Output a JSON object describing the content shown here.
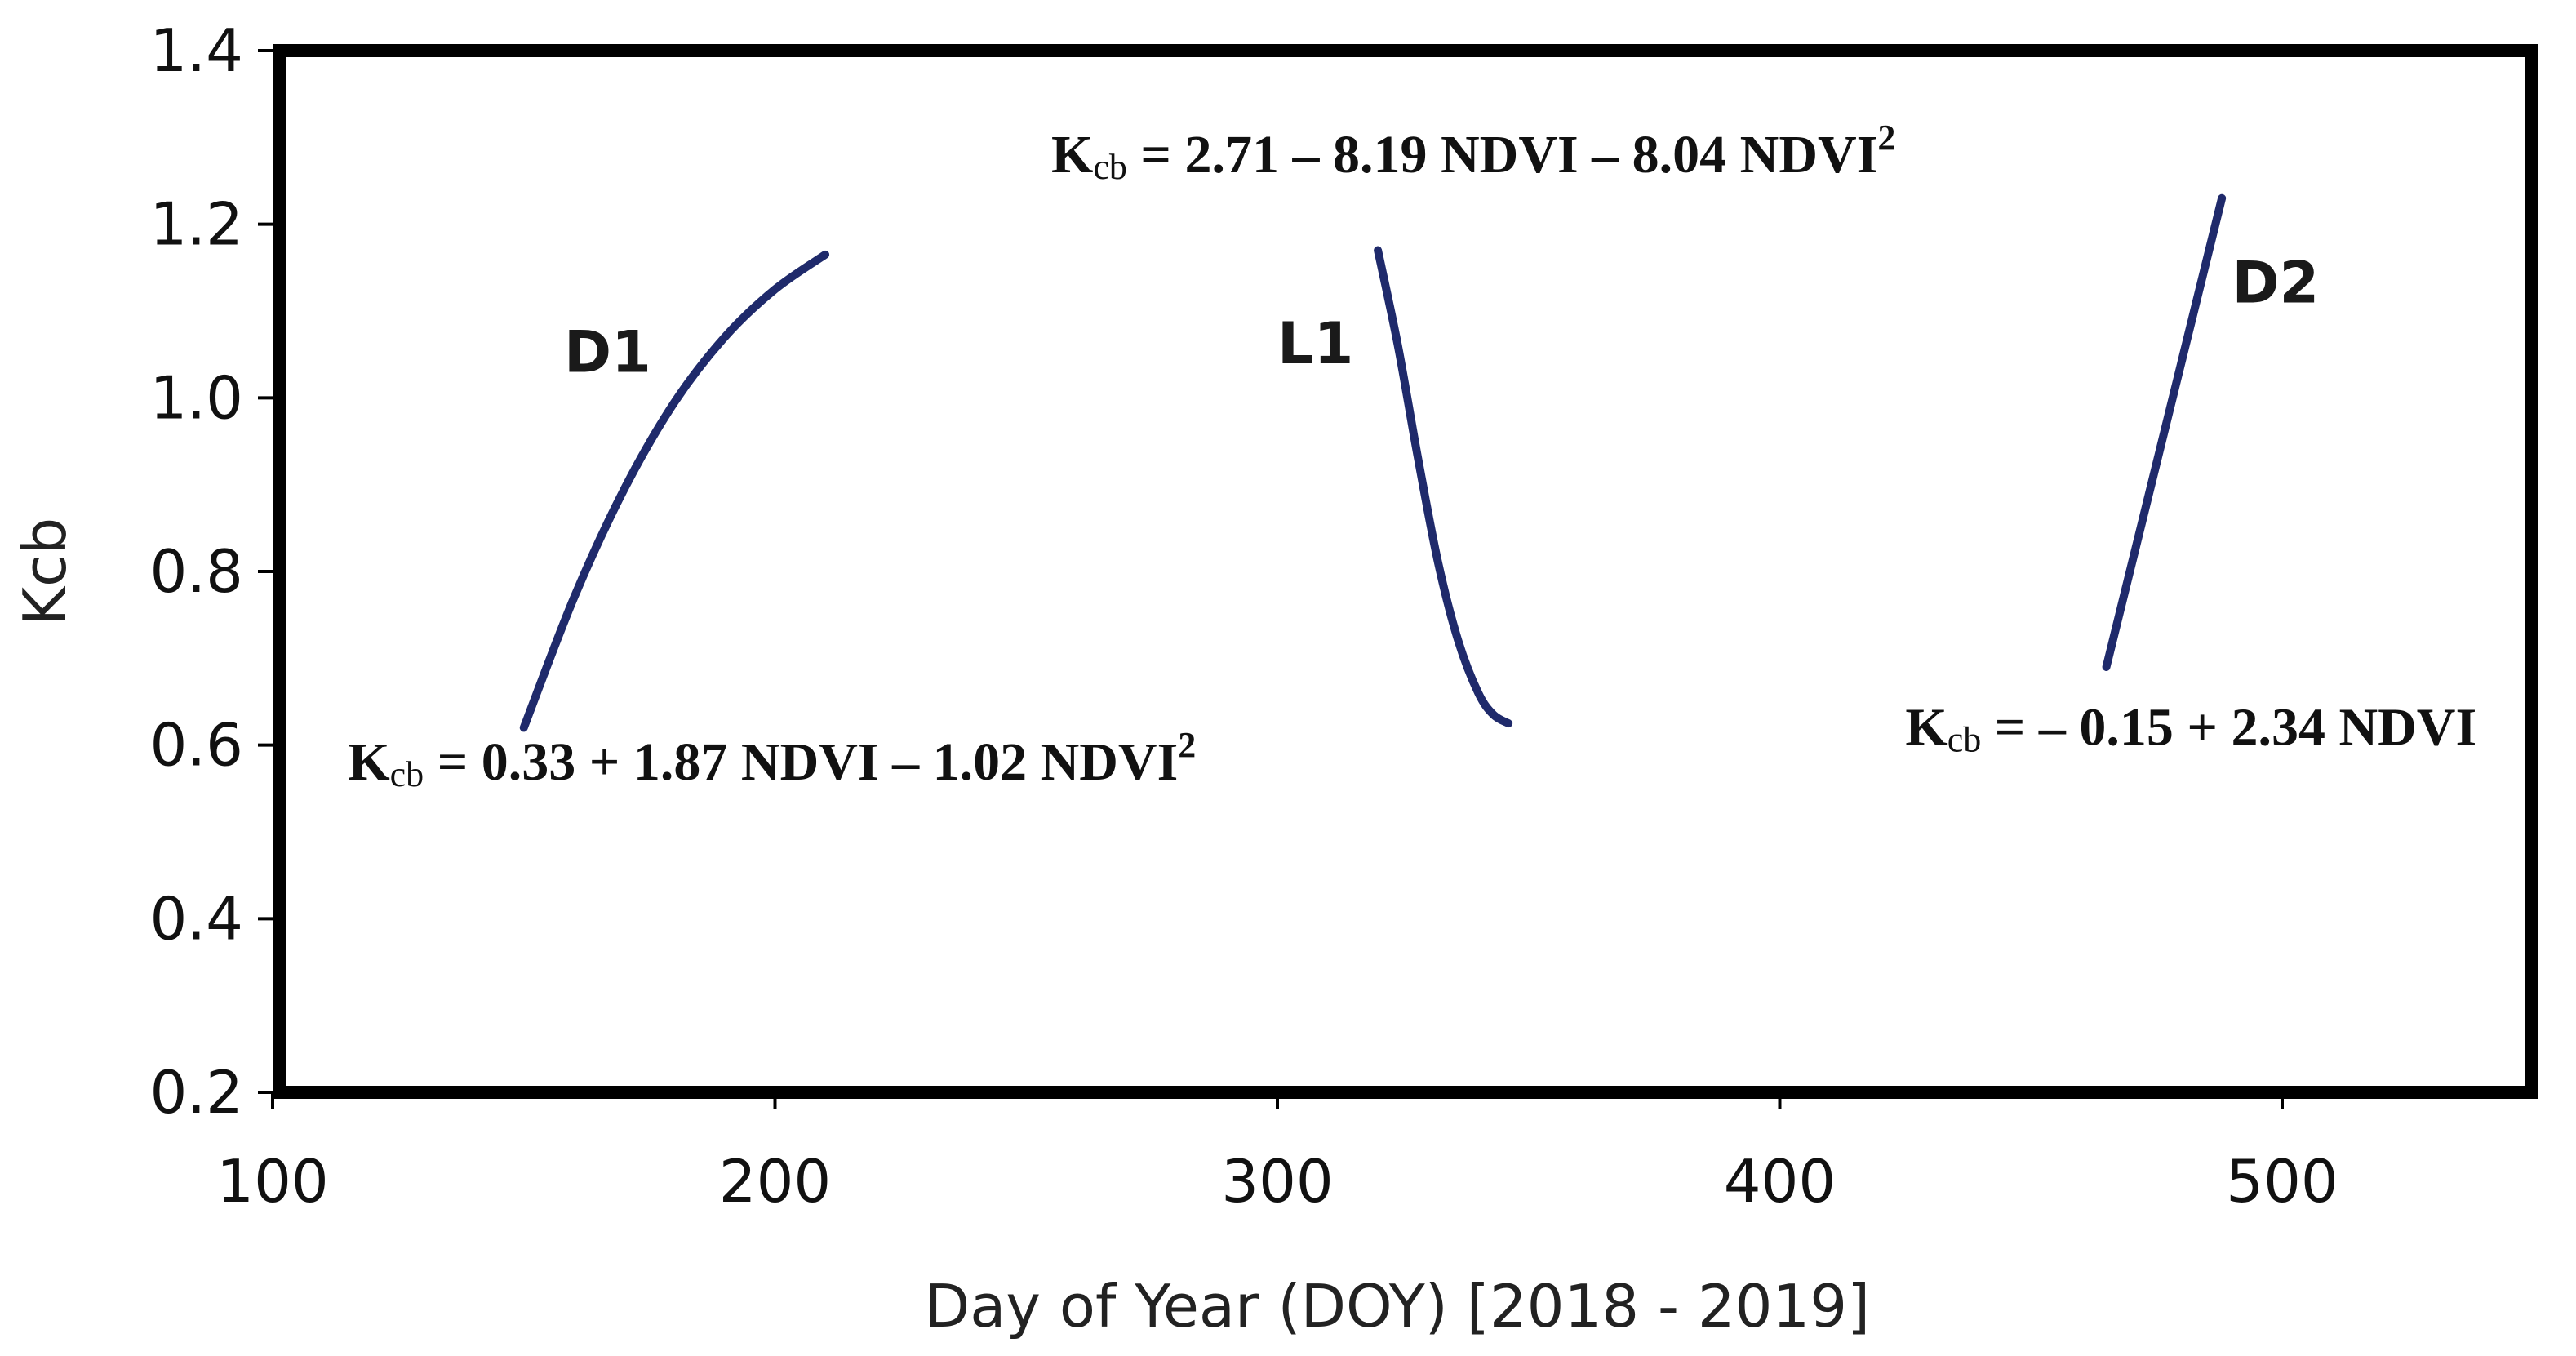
{
  "chart_data": {
    "type": "line",
    "title": "",
    "xlabel": "Day of Year (DOY) [2018 - 2019]",
    "ylabel": "Kcb",
    "xlim": [
      100,
      550
    ],
    "ylim": [
      0.2,
      1.4
    ],
    "x_ticks": [
      100,
      200,
      300,
      400,
      500
    ],
    "y_ticks": [
      0.2,
      0.4,
      0.6,
      0.8,
      1.0,
      1.2,
      1.4
    ],
    "x_tick_labels": [
      "100",
      "200",
      "300",
      "400",
      "500"
    ],
    "y_tick_labels": [
      "0.2",
      "0.4",
      "0.6",
      "0.8",
      "1.0",
      "1.2",
      "1.4"
    ],
    "grid": false,
    "line_color": "#1f2a6b",
    "series": [
      {
        "name": "D1",
        "x": [
          150,
          160,
          170,
          180,
          190,
          200,
          210
        ],
        "y": [
          0.62,
          0.77,
          0.895,
          0.995,
          1.07,
          1.125,
          1.165
        ],
        "label_at": [
          158,
          1.03
        ],
        "equation": {
          "prefix": "K",
          "sub": "cb",
          "body": " = 0.33 + 1.87 NDVI – 1.02 NDVI",
          "sup": "2",
          "anchor": [
            115,
            0.56
          ]
        }
      },
      {
        "name": "L1",
        "x": [
          320,
          324,
          328,
          332,
          336,
          340,
          343,
          346
        ],
        "y": [
          1.17,
          1.06,
          0.93,
          0.81,
          0.72,
          0.66,
          0.635,
          0.625
        ],
        "label_at": [
          300,
          1.04
        ],
        "equation": {
          "prefix": "K",
          "sub": "cb",
          "body": " = 2.71 – 8.19 NDVI – 8.04 NDVI",
          "sup": "2",
          "anchor": [
            255,
            1.26
          ]
        }
      },
      {
        "name": "D2",
        "x": [
          465,
          488
        ],
        "y": [
          0.69,
          1.23
        ],
        "label_at": [
          490,
          1.11
        ],
        "equation": {
          "prefix": "K",
          "sub": "cb",
          "body": " = – 0.15 + 2.34 NDVI",
          "sup": "",
          "anchor": [
            425,
            0.6
          ]
        }
      }
    ]
  }
}
